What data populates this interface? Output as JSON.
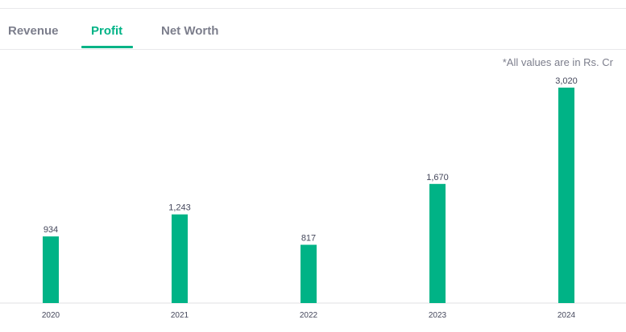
{
  "tabs": [
    {
      "label": "Revenue",
      "active": false
    },
    {
      "label": "Profit",
      "active": true
    },
    {
      "label": "Net Worth",
      "active": false
    }
  ],
  "note": "*All values are in Rs. Cr",
  "colors": {
    "accent": "#00b386",
    "bar": "#00b386"
  },
  "chart_data": {
    "type": "bar",
    "categories": [
      "2020",
      "2021",
      "2022",
      "2023",
      "2024"
    ],
    "values": [
      934,
      1243,
      817,
      1670,
      3020
    ],
    "value_labels": [
      "934",
      "1,243",
      "817",
      "1,670",
      "3,020"
    ],
    "ylim": [
      0,
      3020
    ],
    "grid": false,
    "legend": "none"
  }
}
